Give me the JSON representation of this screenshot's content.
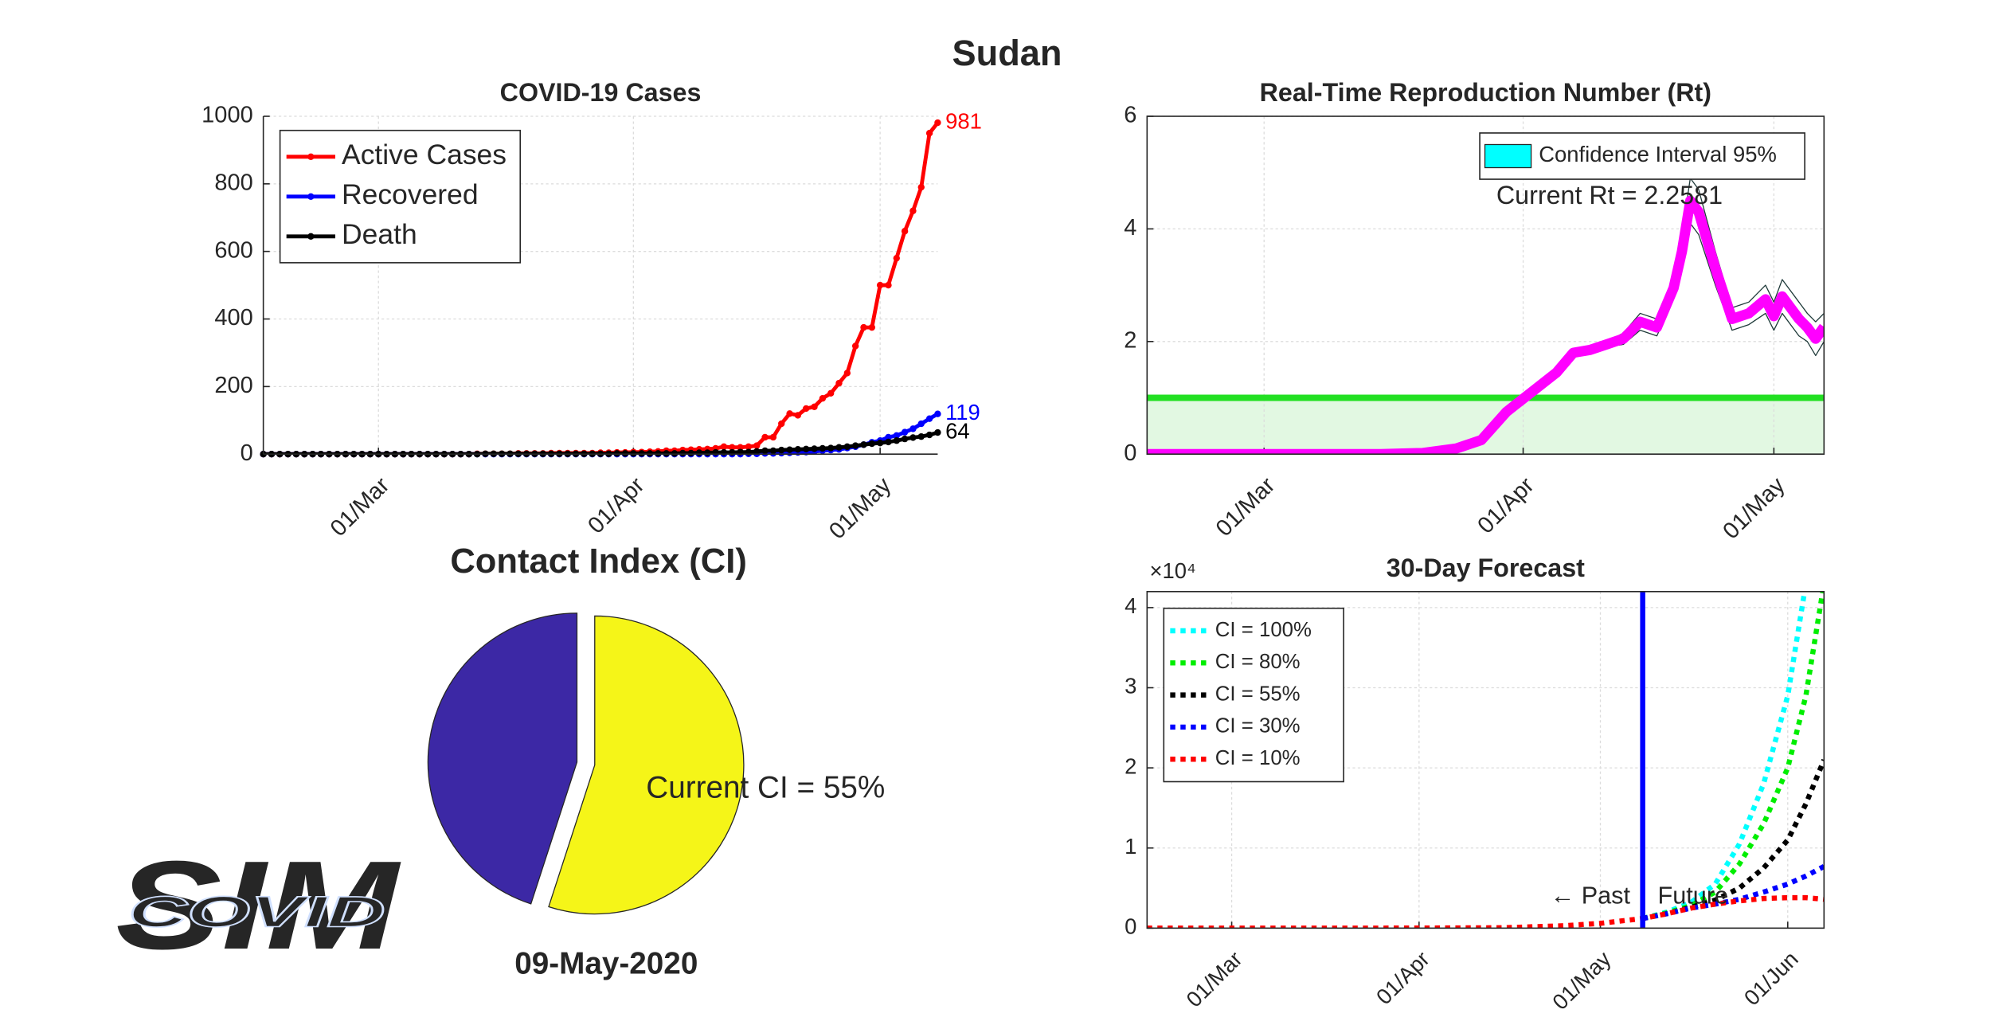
{
  "title": "Sudan",
  "date": "09-May-2020",
  "logo": {
    "back": "SIM",
    "front": "COVID"
  },
  "chart_data": [
    {
      "type": "line",
      "title": "COVID-19 Cases",
      "legend": "northwest",
      "grid": true,
      "markers": true,
      "end_labels": true,
      "x": [
        "16/Feb",
        "17/Feb",
        "18/Feb",
        "19/Feb",
        "20/Feb",
        "21/Feb",
        "22/Feb",
        "23/Feb",
        "24/Feb",
        "25/Feb",
        "26/Feb",
        "27/Feb",
        "28/Feb",
        "29/Feb",
        "01/Mar",
        "02/Mar",
        "03/Mar",
        "04/Mar",
        "05/Mar",
        "06/Mar",
        "07/Mar",
        "08/Mar",
        "09/Mar",
        "10/Mar",
        "11/Mar",
        "12/Mar",
        "13/Mar",
        "14/Mar",
        "15/Mar",
        "16/Mar",
        "17/Mar",
        "18/Mar",
        "19/Mar",
        "20/Mar",
        "21/Mar",
        "22/Mar",
        "23/Mar",
        "24/Mar",
        "25/Mar",
        "26/Mar",
        "27/Mar",
        "28/Mar",
        "29/Mar",
        "30/Mar",
        "31/Mar",
        "01/Apr",
        "02/Apr",
        "03/Apr",
        "04/Apr",
        "05/Apr",
        "06/Apr",
        "07/Apr",
        "08/Apr",
        "09/Apr",
        "10/Apr",
        "11/Apr",
        "12/Apr",
        "13/Apr",
        "14/Apr",
        "15/Apr",
        "16/Apr",
        "17/Apr",
        "18/Apr",
        "19/Apr",
        "20/Apr",
        "21/Apr",
        "22/Apr",
        "23/Apr",
        "24/Apr",
        "25/Apr",
        "26/Apr",
        "27/Apr",
        "28/Apr",
        "29/Apr",
        "30/Apr",
        "01/May",
        "02/May",
        "03/May",
        "04/May",
        "05/May",
        "06/May",
        "07/May",
        "08/May"
      ],
      "series": [
        {
          "name": "Active Cases",
          "color": "#ff0000",
          "values": [
            0,
            0,
            0,
            0,
            0,
            0,
            0,
            0,
            0,
            0,
            0,
            0,
            0,
            0,
            0,
            0,
            0,
            0,
            0,
            0,
            0,
            0,
            0,
            0,
            0,
            0,
            1,
            1,
            1,
            1,
            1,
            2,
            2,
            2,
            2,
            3,
            3,
            3,
            3,
            3,
            3,
            4,
            4,
            5,
            5,
            6,
            6,
            7,
            8,
            10,
            10,
            12,
            13,
            14,
            15,
            17,
            22,
            20,
            20,
            22,
            25,
            50,
            50,
            90,
            120,
            115,
            135,
            140,
            165,
            180,
            210,
            240,
            320,
            375,
            375,
            500,
            500,
            580,
            660,
            720,
            790,
            950,
            981
          ]
        },
        {
          "name": "Recovered",
          "color": "#0000ff",
          "values": [
            0,
            0,
            0,
            0,
            0,
            0,
            0,
            0,
            0,
            0,
            0,
            0,
            0,
            0,
            0,
            0,
            0,
            0,
            0,
            0,
            0,
            0,
            0,
            0,
            0,
            0,
            0,
            0,
            0,
            0,
            0,
            0,
            0,
            0,
            0,
            0,
            0,
            0,
            0,
            0,
            0,
            0,
            0,
            0,
            0,
            0,
            0,
            0,
            0,
            0,
            0,
            0,
            0,
            0,
            0,
            0,
            0,
            0,
            0,
            1,
            1,
            2,
            2,
            3,
            4,
            5,
            6,
            8,
            10,
            12,
            14,
            18,
            22,
            28,
            35,
            40,
            50,
            55,
            65,
            75,
            90,
            105,
            119
          ]
        },
        {
          "name": "Death",
          "color": "#000000",
          "values": [
            0,
            0,
            0,
            0,
            0,
            0,
            0,
            0,
            0,
            0,
            0,
            0,
            0,
            0,
            0,
            0,
            0,
            0,
            0,
            0,
            0,
            0,
            0,
            0,
            0,
            0,
            0,
            1,
            1,
            1,
            1,
            1,
            1,
            1,
            1,
            1,
            1,
            1,
            1,
            1,
            1,
            1,
            1,
            2,
            2,
            2,
            2,
            2,
            2,
            2,
            2,
            3,
            3,
            4,
            4,
            5,
            5,
            5,
            6,
            6,
            8,
            10,
            10,
            12,
            13,
            14,
            15,
            16,
            17,
            18,
            20,
            22,
            25,
            28,
            31,
            33,
            36,
            40,
            45,
            49,
            52,
            57,
            64
          ]
        }
      ],
      "xlim": [
        "16/Feb",
        "08/May"
      ],
      "xticks": [
        "01/Mar",
        "01/Apr",
        "01/May"
      ],
      "ylim": [
        0,
        1000
      ],
      "yticks": [
        0,
        200,
        400,
        600,
        800,
        1000
      ]
    },
    {
      "type": "line",
      "title": "Real-Time Reproduction Number (Rt)",
      "legend": "northeast",
      "grid": true,
      "box": true,
      "x": [
        "16/Feb",
        "01/Mar",
        "15/Mar",
        "20/Mar",
        "24/Mar",
        "27/Mar",
        "30/Mar",
        "02/Apr",
        "05/Apr",
        "07/Apr",
        "09/Apr",
        "11/Apr",
        "13/Apr",
        "15/Apr",
        "17/Apr",
        "19/Apr",
        "20/Apr",
        "21/Apr",
        "22/Apr",
        "24/Apr",
        "26/Apr",
        "28/Apr",
        "30/Apr",
        "01/May",
        "02/May",
        "04/May",
        "05/May",
        "06/May",
        "07/May"
      ],
      "values": [
        0,
        0,
        0,
        0.02,
        0.1,
        0.25,
        0.75,
        1.1,
        1.45,
        1.8,
        1.85,
        1.95,
        2.05,
        2.35,
        2.25,
        2.95,
        3.6,
        4.5,
        4.3,
        3.3,
        2.4,
        2.5,
        2.75,
        2.45,
        2.8,
        2.4,
        2.25,
        2.05,
        2.26
      ],
      "color": "#ff00ff",
      "ci": {
        "name": "Confidence Interval 95%",
        "color": "#00ffff",
        "lower": [
          0,
          0,
          0,
          0.02,
          0.1,
          0.25,
          0.75,
          1.05,
          1.4,
          1.75,
          1.8,
          1.9,
          1.95,
          2.2,
          2.1,
          2.75,
          3.3,
          4.1,
          3.9,
          3.0,
          2.2,
          2.3,
          2.5,
          2.2,
          2.5,
          2.1,
          2.0,
          1.75,
          2.0
        ],
        "upper": [
          0,
          0,
          0,
          0.02,
          0.1,
          0.25,
          0.75,
          1.15,
          1.5,
          1.85,
          1.9,
          2.0,
          2.15,
          2.5,
          2.4,
          3.15,
          3.9,
          4.9,
          4.7,
          3.6,
          2.6,
          2.7,
          3.0,
          2.7,
          3.1,
          2.7,
          2.5,
          2.35,
          2.5
        ]
      },
      "threshold": 1,
      "threshold_color": "#22e022",
      "annotations": [
        "Current Rt = 2.2581"
      ],
      "xlim": [
        "16/Feb",
        "07/May"
      ],
      "xticks": [
        "01/Mar",
        "01/Apr",
        "01/May"
      ],
      "ylim": [
        0,
        6
      ],
      "yticks": [
        0,
        2,
        4,
        6
      ]
    },
    {
      "type": "pie",
      "title": "Contact Index (CI)",
      "values": [
        55,
        45
      ],
      "colors": [
        "#f5f518",
        "#3c28a5"
      ],
      "explode": [
        false,
        true
      ],
      "annotations": [
        "Current CI = 55%"
      ]
    },
    {
      "type": "line",
      "title": "30-Day Forecast",
      "legend": "northwest",
      "grid": true,
      "box": true,
      "dashed": true,
      "y_scale_label": "×10⁴",
      "x": [
        "16/Feb",
        "01/Mar",
        "15/Mar",
        "01/Apr",
        "15/Apr",
        "25/Apr",
        "01/May",
        "08/May",
        "12/May",
        "16/May",
        "20/May",
        "24/May",
        "28/May",
        "01/Jun",
        "04/Jun",
        "07/Jun"
      ],
      "series": [
        {
          "name": "CI = 100%",
          "color": "#00ffff",
          "values": [
            null,
            null,
            null,
            null,
            null,
            null,
            null,
            0.12,
            0.2,
            0.32,
            0.55,
            1.05,
            1.8,
            2.9,
            4.3,
            5.5
          ]
        },
        {
          "name": "CI = 80%",
          "color": "#00ee00",
          "values": [
            null,
            null,
            null,
            null,
            null,
            null,
            null,
            0.12,
            0.19,
            0.28,
            0.45,
            0.8,
            1.3,
            2.0,
            2.9,
            4.3
          ]
        },
        {
          "name": "CI = 55%",
          "color": "#000000",
          "values": [
            null,
            null,
            null,
            null,
            null,
            null,
            null,
            0.12,
            0.18,
            0.26,
            0.35,
            0.5,
            0.75,
            1.1,
            1.55,
            2.1
          ]
        },
        {
          "name": "CI = 30%",
          "color": "#0000ff",
          "values": [
            null,
            null,
            null,
            null,
            null,
            null,
            null,
            0.12,
            0.18,
            0.25,
            0.3,
            0.36,
            0.45,
            0.55,
            0.65,
            0.77
          ]
        },
        {
          "name": "CI = 10%",
          "color": "#ff0000",
          "values": [
            0,
            0,
            0,
            0.001,
            0.005,
            0.03,
            0.06,
            0.12,
            0.18,
            0.25,
            0.3,
            0.34,
            0.37,
            0.38,
            0.38,
            0.36
          ]
        }
      ],
      "vline": {
        "x": "08/May",
        "color": "#0000ff"
      },
      "annotations": [
        "← Past",
        "Future"
      ],
      "xlim": [
        "16/Feb",
        "07/Jun"
      ],
      "xticks": [
        "01/Mar",
        "01/Apr",
        "01/May",
        "01/Jun"
      ],
      "ylim": [
        0,
        4.2
      ],
      "yticks": [
        0,
        1,
        2,
        3,
        4
      ]
    }
  ]
}
